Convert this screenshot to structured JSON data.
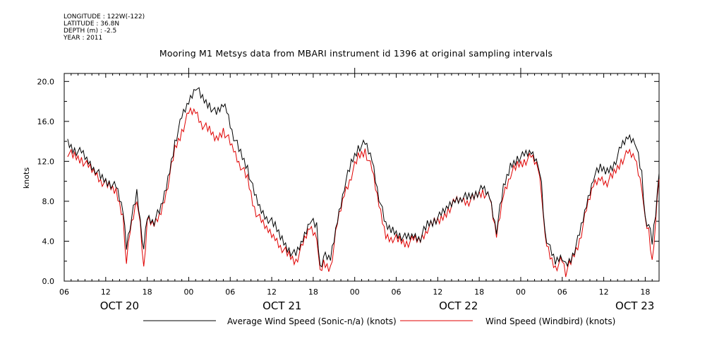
{
  "meta": {
    "longitude": "LONGITUDE : 122W(-122)",
    "latitude": "LATITUDE : 36.8N",
    "depth": "DEPTH (m) : -2.5",
    "year": "YEAR : 2011"
  },
  "chart_data": {
    "type": "line",
    "title": "Mooring M1 Metsys data from MBARI instrument id 1396 at original sampling intervals",
    "ylabel": "knots",
    "xlabel": "",
    "ylim": [
      0,
      20.8
    ],
    "xlim_hours": [
      6,
      92
    ],
    "yticks": [
      0.0,
      4.0,
      8.0,
      12.0,
      16.0,
      20.0
    ],
    "yticks_labels": [
      "0.0",
      "4.0",
      "8.0",
      "12.0",
      "16.0",
      "20.0"
    ],
    "xticks_hours": [
      6,
      12,
      18,
      24,
      30,
      36,
      42,
      48,
      54,
      60,
      66,
      72,
      78,
      84,
      90
    ],
    "xticks_labels": [
      "06",
      "12",
      "18",
      "00",
      "06",
      "12",
      "18",
      "00",
      "06",
      "12",
      "18",
      "00",
      "06",
      "12",
      "18"
    ],
    "date_labels": [
      {
        "text": "OCT 20",
        "hour": 14
      },
      {
        "text": "OCT 21",
        "hour": 37.5
      },
      {
        "text": "OCT 22",
        "hour": 63
      },
      {
        "text": "OCT 23",
        "hour": 88.5
      }
    ],
    "grid": false,
    "legend_position": "bottom",
    "series": [
      {
        "name": "Average Wind Speed (Sonic-n/a) (knots)",
        "color": "#000000",
        "x_hours": [
          6.5,
          7.5,
          8.5,
          9.5,
          10.5,
          11.5,
          12.5,
          13.5,
          14.5,
          15,
          15.5,
          16.5,
          17,
          17.5,
          18,
          19,
          20,
          21,
          22,
          23,
          24,
          25,
          26,
          27,
          28,
          29,
          29.5,
          30.5,
          31.5,
          32.5,
          33.5,
          34.5,
          35.5,
          36.5,
          37.5,
          38.5,
          39.5,
          40.5,
          41.5,
          42.5,
          43,
          43.5,
          44.5,
          45.5,
          46.5,
          47.5,
          48.5,
          49.5,
          50.5,
          51.5,
          52.5,
          53.5,
          54.5,
          55.5,
          56.5,
          57.5,
          58.5,
          59.5,
          60.5,
          61.5,
          62.5,
          63.5,
          64.5,
          65.5,
          66.5,
          67.5,
          68.5,
          69.5,
          70.5,
          71.5,
          72.5,
          73.5,
          74.5,
          75,
          75.5,
          76.5,
          77,
          77.5,
          78,
          78.5,
          79.5,
          80.5,
          81.5,
          82.5,
          83.5,
          84.5,
          85.5,
          86.5,
          87.5,
          88.5,
          89.5,
          90,
          90.5,
          91,
          91.5,
          92
        ],
        "values": [
          13.9,
          13.2,
          12.9,
          12.0,
          11.2,
          10.2,
          9.8,
          9.3,
          7.0,
          3.5,
          5.6,
          8.8,
          6.0,
          3.2,
          6.4,
          6.0,
          7.2,
          10.2,
          14.0,
          16.4,
          18.0,
          19.6,
          18.2,
          17.6,
          16.6,
          17.6,
          17.2,
          14.6,
          12.8,
          11.4,
          8.6,
          7.0,
          6.2,
          5.4,
          4.2,
          3.2,
          2.6,
          4.2,
          6.2,
          5.4,
          1.3,
          2.4,
          2.2,
          6.2,
          9.6,
          11.8,
          13.4,
          13.7,
          12.2,
          8.4,
          5.4,
          5.1,
          4.7,
          4.3,
          4.6,
          4.4,
          5.6,
          6.0,
          6.5,
          7.4,
          8.2,
          8.5,
          8.4,
          8.8,
          9.2,
          8.5,
          5.1,
          9.2,
          11.5,
          12.4,
          12.6,
          13.0,
          12.0,
          9.5,
          4.8,
          2.5,
          1.8,
          2.3,
          2.6,
          1.5,
          2.6,
          4.6,
          7.6,
          10.4,
          11.2,
          11.0,
          11.8,
          13.4,
          14.5,
          14.2,
          10.6,
          6.2,
          5.6,
          3.8,
          6.8,
          10.8
        ]
      },
      {
        "name": "Wind Speed (Windbird) (knots)",
        "color": "#e00000",
        "x_hours": [
          6.5,
          7.5,
          8.5,
          9.5,
          10.5,
          11.5,
          12.5,
          13.5,
          14.5,
          15,
          15.5,
          16.5,
          17,
          17.5,
          18,
          19,
          20,
          21,
          22,
          23,
          24,
          25,
          26,
          27,
          28,
          29,
          29.5,
          30.5,
          31.5,
          32.5,
          33.5,
          34.5,
          35.5,
          36.5,
          37.5,
          38.5,
          39.5,
          40.5,
          41.5,
          42.5,
          43,
          43.5,
          44.5,
          45.5,
          46.5,
          47.5,
          48.5,
          49.5,
          50.5,
          51.5,
          52.5,
          53.5,
          54.5,
          55.5,
          56.5,
          57.5,
          58.5,
          59.5,
          60.5,
          61.5,
          62.5,
          63.5,
          64.5,
          65.5,
          66.5,
          67.5,
          68.5,
          69.5,
          70.5,
          71.5,
          72.5,
          73.5,
          74.5,
          75,
          75.5,
          76.5,
          77,
          77.5,
          78,
          78.5,
          79.5,
          80.5,
          81.5,
          82.5,
          83.5,
          84.5,
          85.5,
          86.5,
          87.5,
          88.5,
          89.5,
          90,
          90.5,
          91,
          91.5,
          92
        ],
        "values": [
          13.0,
          12.5,
          12.2,
          11.4,
          10.8,
          9.9,
          9.4,
          9.0,
          6.6,
          1.8,
          5.0,
          8.4,
          5.4,
          1.2,
          6.0,
          5.6,
          7.0,
          9.8,
          13.2,
          15.0,
          16.8,
          17.0,
          15.6,
          15.0,
          14.2,
          15.2,
          14.6,
          13.2,
          11.6,
          10.2,
          7.2,
          5.8,
          5.0,
          4.4,
          3.4,
          2.6,
          2.0,
          3.6,
          5.4,
          4.6,
          0.6,
          1.8,
          1.4,
          5.8,
          8.8,
          10.6,
          12.4,
          13.0,
          11.0,
          7.6,
          4.6,
          4.4,
          4.1,
          3.8,
          4.1,
          4.1,
          5.2,
          5.8,
          6.2,
          7.2,
          8.0,
          8.2,
          8.0,
          8.5,
          8.9,
          8.2,
          4.5,
          8.8,
          10.8,
          11.6,
          12.0,
          12.4,
          11.4,
          9.0,
          4.2,
          2.0,
          1.4,
          1.8,
          2.2,
          0.9,
          2.2,
          4.0,
          7.0,
          9.6,
          10.4,
          10.0,
          10.8,
          12.0,
          12.8,
          12.4,
          9.6,
          5.8,
          5.0,
          2.0,
          6.0,
          10.2
        ]
      }
    ]
  }
}
